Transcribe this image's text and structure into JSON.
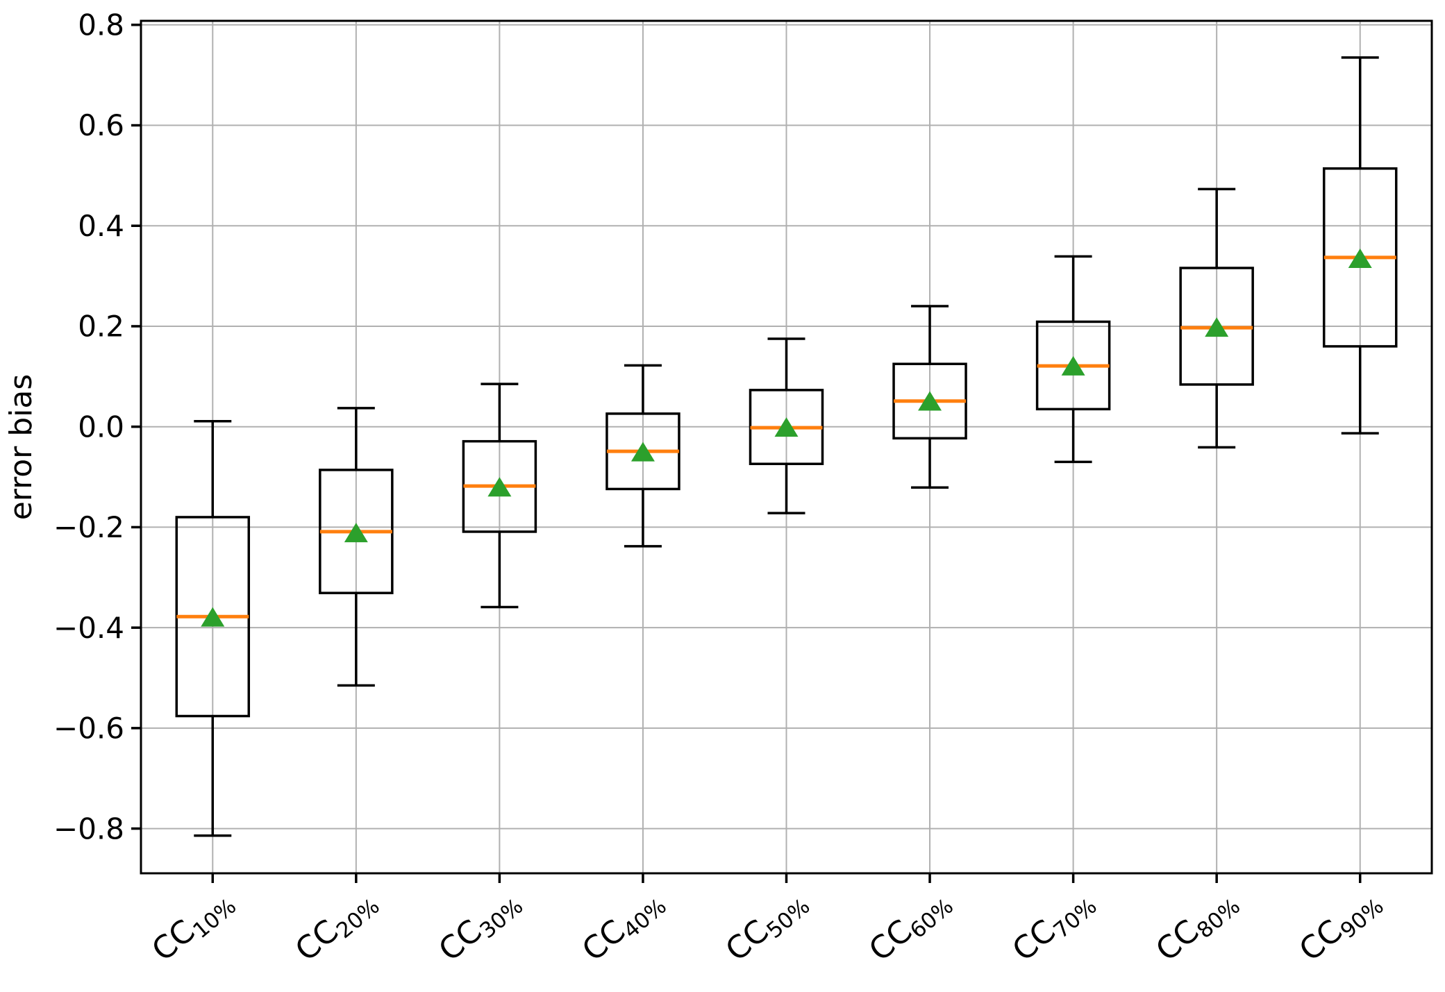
{
  "figure": {
    "background": "#ffffff"
  },
  "chart_data": {
    "type": "boxplot",
    "title": "",
    "xlabel": "",
    "ylabel": "error bias",
    "grid": true,
    "legend": null,
    "ylim": [
      -0.889,
      0.808
    ],
    "xlim": [
      0.5,
      9.5
    ],
    "yticks": [
      0.8,
      0.6,
      0.4,
      0.2,
      0.0,
      -0.2,
      -0.4,
      -0.6,
      -0.8
    ],
    "categories": [
      "CC10%",
      "CC20%",
      "CC30%",
      "CC40%",
      "CC50%",
      "CC60%",
      "CC70%",
      "CC80%",
      "CC90%"
    ],
    "colors": {
      "box_line": "#000000",
      "median_line": "#ff7f0e",
      "mean_marker": "#2ca02c",
      "grid_line": "#b0b0b0",
      "spine": "#000000",
      "tick_text": "#000000"
    },
    "boxes": [
      {
        "label": {
          "main": "CC",
          "sub": "10%"
        },
        "whislo": -0.814,
        "q1": -0.576,
        "med": -0.378,
        "mean": -0.38,
        "q3": -0.18,
        "whishi": 0.011
      },
      {
        "label": {
          "main": "CC",
          "sub": "20%"
        },
        "whislo": -0.515,
        "q1": -0.331,
        "med": -0.209,
        "mean": -0.212,
        "q3": -0.086,
        "whishi": 0.037
      },
      {
        "label": {
          "main": "CC",
          "sub": "30%"
        },
        "whislo": -0.359,
        "q1": -0.209,
        "med": -0.118,
        "mean": -0.121,
        "q3": -0.029,
        "whishi": 0.085
      },
      {
        "label": {
          "main": "CC",
          "sub": "40%"
        },
        "whislo": -0.238,
        "q1": -0.124,
        "med": -0.049,
        "mean": -0.051,
        "q3": 0.026,
        "whishi": 0.122
      },
      {
        "label": {
          "main": "CC",
          "sub": "50%"
        },
        "whislo": -0.172,
        "q1": -0.074,
        "med": -0.002,
        "mean": -0.002,
        "q3": 0.073,
        "whishi": 0.175
      },
      {
        "label": {
          "main": "CC",
          "sub": "60%"
        },
        "whislo": -0.121,
        "q1": -0.023,
        "med": 0.051,
        "mean": 0.05,
        "q3": 0.125,
        "whishi": 0.24
      },
      {
        "label": {
          "main": "CC",
          "sub": "70%"
        },
        "whislo": -0.07,
        "q1": 0.035,
        "med": 0.121,
        "mean": 0.12,
        "q3": 0.209,
        "whishi": 0.339
      },
      {
        "label": {
          "main": "CC",
          "sub": "80%"
        },
        "whislo": -0.041,
        "q1": 0.084,
        "med": 0.197,
        "mean": 0.197,
        "q3": 0.316,
        "whishi": 0.473
      },
      {
        "label": {
          "main": "CC",
          "sub": "90%"
        },
        "whislo": -0.013,
        "q1": 0.16,
        "med": 0.337,
        "mean": 0.334,
        "q3": 0.514,
        "whishi": 0.735
      }
    ]
  }
}
